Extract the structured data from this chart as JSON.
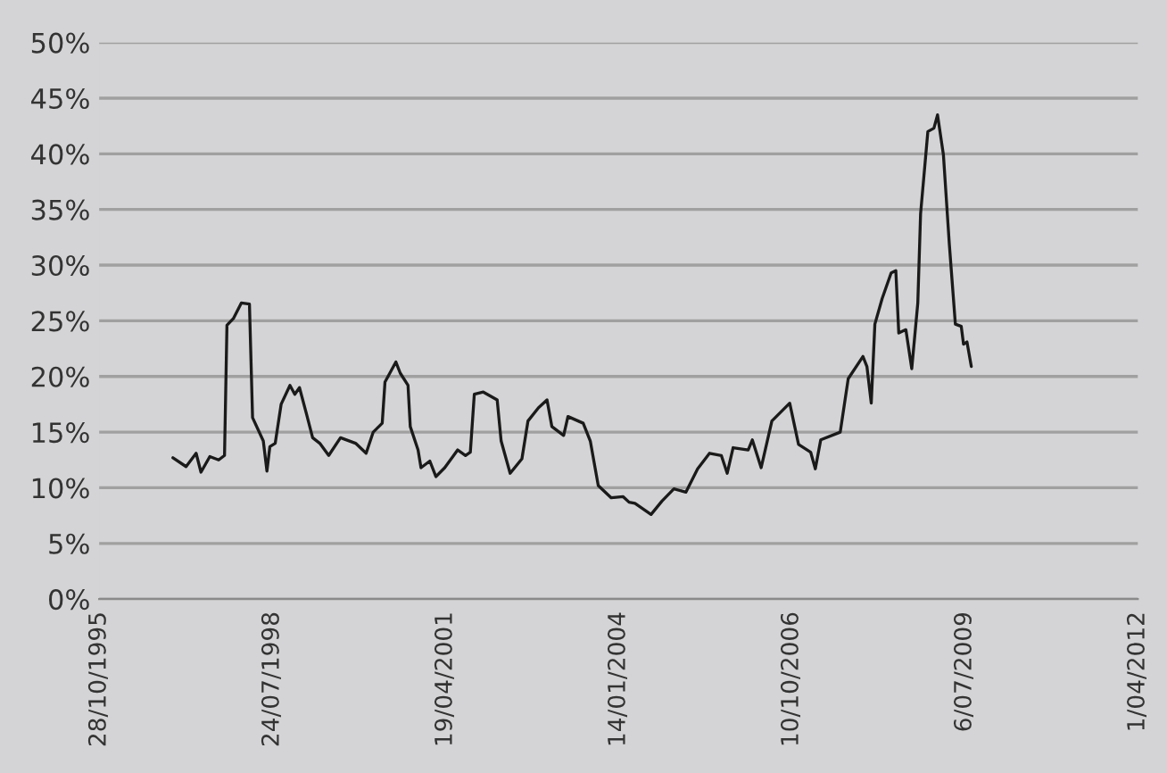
{
  "chart_data": {
    "type": "line",
    "x": [
      "1996-12-27",
      "1997-03-13",
      "1997-05-10",
      "1997-06-07",
      "1997-07-28",
      "1997-09-17",
      "1997-10-21",
      "1997-11-04",
      "1997-12-11",
      "1998-01-26",
      "1998-03-14",
      "1998-04-01",
      "1998-06-02",
      "1998-06-23",
      "1998-07-10",
      "1998-08-10",
      "1998-09-13",
      "1998-11-03",
      "1998-12-01",
      "1998-12-28",
      "1999-02-07",
      "1999-03-14",
      "1999-04-24",
      "1999-06-15",
      "1999-08-22",
      "1999-11-17",
      "2000-01-17",
      "2000-02-27",
      "2000-04-19",
      "2000-05-05",
      "2000-07-07",
      "2000-08-01",
      "2000-09-15",
      "2000-09-28",
      "2000-11-12",
      "2000-11-29",
      "2001-01-19",
      "2001-02-23",
      "2001-04-15",
      "2001-06-29",
      "2001-08-13",
      "2001-09-10",
      "2001-10-03",
      "2001-11-24",
      "2002-02-12",
      "2002-03-07",
      "2002-04-28",
      "2002-07-05",
      "2002-08-09",
      "2002-10-09",
      "2002-11-27",
      "2002-12-25",
      "2003-03-03",
      "2003-03-28",
      "2003-06-24",
      "2003-08-04",
      "2003-09-19",
      "2003-12-03",
      "2004-02-10",
      "2004-03-15",
      "2004-04-18",
      "2004-07-20",
      "2004-09-21",
      "2004-11-29",
      "2005-02-06",
      "2005-04-15",
      "2005-06-23",
      "2005-08-30",
      "2005-10-03",
      "2005-11-06",
      "2006-02-01",
      "2006-02-25",
      "2006-04-17",
      "2006-06-18",
      "2006-09-29",
      "2006-11-19",
      "2007-01-28",
      "2007-02-24",
      "2007-03-27",
      "2007-07-18",
      "2007-09-02",
      "2007-11-26",
      "2007-12-19",
      "2008-01-13",
      "2008-02-03",
      "2008-03-16",
      "2008-05-07",
      "2008-06-03",
      "2008-06-20",
      "2008-07-31",
      "2008-09-03",
      "2008-10-08",
      "2008-10-24",
      "2008-12-05",
      "2009-01-09",
      "2009-01-30",
      "2009-03-05",
      "2009-04-08",
      "2009-05-13",
      "2009-06-16",
      "2009-06-29",
      "2009-07-19",
      "2009-08-13"
    ],
    "series": [
      {
        "color": "#1a1a1a",
        "values": [
          12.7,
          11.9,
          13.1,
          11.4,
          12.8,
          12.5,
          12.9,
          24.6,
          25.2,
          26.6,
          26.5,
          16.3,
          14.2,
          11.5,
          13.7,
          14.0,
          17.5,
          19.2,
          18.4,
          19.0,
          16.6,
          14.5,
          14.0,
          12.9,
          14.5,
          14.0,
          13.1,
          15.0,
          15.8,
          19.5,
          21.3,
          20.3,
          19.2,
          15.5,
          13.4,
          11.8,
          12.4,
          11.0,
          11.8,
          13.4,
          12.9,
          13.2,
          18.4,
          18.6,
          17.9,
          14.2,
          11.3,
          12.6,
          16.0,
          17.2,
          17.9,
          15.5,
          14.7,
          16.4,
          15.8,
          14.2,
          10.2,
          9.1,
          9.2,
          8.7,
          8.6,
          7.6,
          8.8,
          9.9,
          9.6,
          11.7,
          13.1,
          12.9,
          11.3,
          13.6,
          13.4,
          14.3,
          11.8,
          16.0,
          17.6,
          13.9,
          13.2,
          11.7,
          14.3,
          15.0,
          19.8,
          21.8,
          20.9,
          17.6,
          24.7,
          27.0,
          29.3,
          29.5,
          23.9,
          24.2,
          20.7,
          26.6,
          34.6,
          42.0,
          42.3,
          43.5,
          39.9,
          31.9,
          24.7,
          24.5,
          22.9,
          23.1,
          20.9
        ]
      }
    ],
    "xlim": [
      "1995-10-28",
      "2012-04-01"
    ],
    "xticks": [
      {
        "value": "1995-10-28",
        "label": "28/10/1995"
      },
      {
        "value": "1998-07-24",
        "label": "24/07/1998"
      },
      {
        "value": "2001-04-19",
        "label": "19/04/2001"
      },
      {
        "value": "2004-01-14",
        "label": "14/01/2004"
      },
      {
        "value": "2006-10-10",
        "label": "10/10/2006"
      },
      {
        "value": "2009-07-06",
        "label": "6/07/2009"
      },
      {
        "value": "2012-04-01",
        "label": "1/04/2012"
      }
    ],
    "ylim": [
      0,
      50
    ],
    "yticks": [
      {
        "value": 0,
        "label": "0%"
      },
      {
        "value": 5,
        "label": "5%"
      },
      {
        "value": 10,
        "label": "10%"
      },
      {
        "value": 15,
        "label": "15%"
      },
      {
        "value": 20,
        "label": "20%"
      },
      {
        "value": 25,
        "label": "25%"
      },
      {
        "value": 30,
        "label": "30%"
      },
      {
        "value": 35,
        "label": "35%"
      },
      {
        "value": 40,
        "label": "40%"
      },
      {
        "value": 45,
        "label": "45%"
      },
      {
        "value": 50,
        "label": "50%"
      }
    ],
    "grid": "y",
    "legend": false
  }
}
